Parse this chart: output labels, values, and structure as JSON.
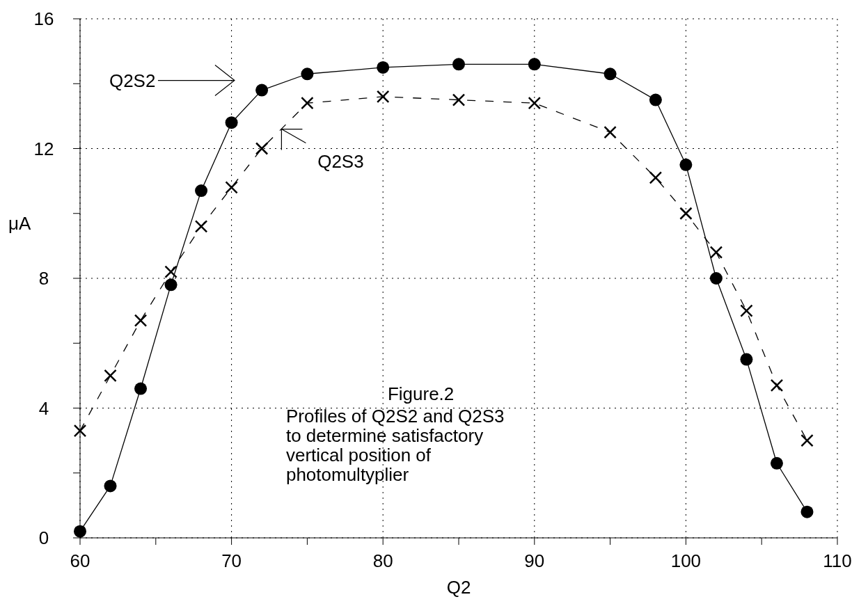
{
  "chart_data": {
    "type": "line",
    "xlabel": "Q2",
    "ylabel": "μA",
    "x": [
      60,
      62,
      64,
      66,
      68,
      70,
      72,
      75,
      80,
      85,
      90,
      95,
      98,
      100,
      102,
      104,
      106,
      108
    ],
    "series": [
      {
        "name": "Q2S2",
        "color": "#000000",
        "marker": "circle",
        "line_style": "solid",
        "values": [
          0.2,
          1.6,
          4.6,
          7.8,
          10.7,
          12.8,
          13.8,
          14.3,
          14.5,
          14.6,
          14.6,
          14.3,
          13.5,
          11.5,
          8.0,
          5.5,
          2.3,
          0.8
        ]
      },
      {
        "name": "Q2S3",
        "color": "#000000",
        "marker": "cross",
        "line_style": "dashed",
        "values": [
          3.3,
          5.0,
          6.7,
          8.2,
          9.6,
          10.8,
          12.0,
          13.4,
          13.6,
          13.5,
          13.4,
          12.5,
          11.1,
          10.0,
          8.8,
          7.0,
          4.7,
          3.0
        ]
      }
    ],
    "xlim": [
      60,
      110
    ],
    "xticks": [
      60,
      {
        "value": 65,
        "label": null
      },
      70,
      {
        "value": 75,
        "label": null
      },
      80,
      {
        "value": 85,
        "label": null
      },
      90,
      {
        "value": 95,
        "label": null
      },
      100,
      {
        "value": 105,
        "label": null
      },
      110
    ],
    "ylim": [
      0,
      16
    ],
    "yticks": [
      0,
      {
        "value": 2,
        "label": null
      },
      4,
      {
        "value": 6,
        "label": null
      },
      8,
      {
        "value": 10,
        "label": null
      },
      12,
      {
        "value": 14,
        "label": null
      },
      16
    ],
    "grid": true,
    "annotations": [
      "Figure.2",
      "Profiles of Q2S2 and Q2S3\nto determine satisfactory\nvertical position of\nphotomultyplier"
    ]
  }
}
